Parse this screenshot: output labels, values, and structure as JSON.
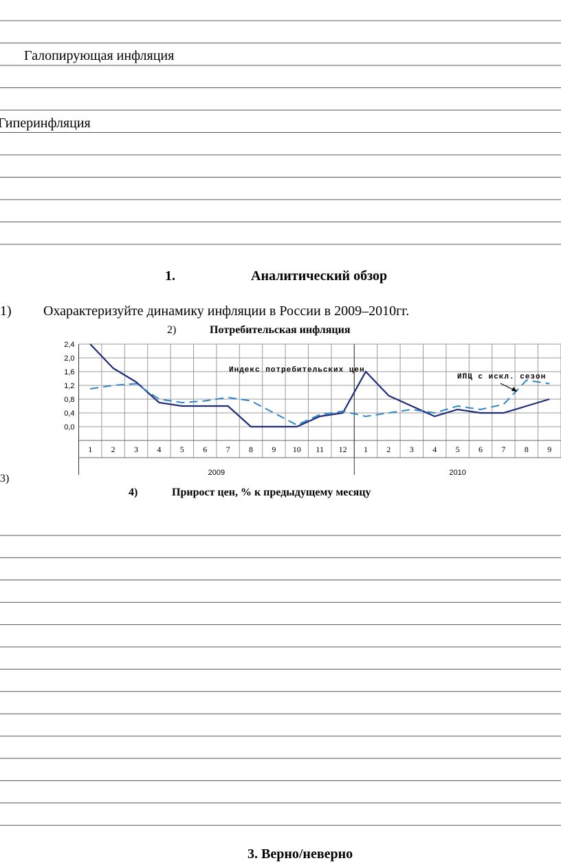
{
  "document": {
    "term_1": "Галопирующая инфляция",
    "term_2": "Гиперинфляция",
    "section_number": "1.",
    "section_title": "Аналитический обзор",
    "item_1_number": "1)",
    "item_1_text": "Охарактеризуйте  динамику инфляции в России в 2009–2010гг.",
    "item_2_number": "2)",
    "item_2_text": "Потребительская инфляция",
    "item_3_number": "3)",
    "item_4_number": "4)",
    "item_4_text": "Прирост цен,  % к предыдущему месяцу",
    "next_section": "3. Верно/неверно"
  },
  "chart_data": {
    "type": "line",
    "categories": [
      "1",
      "2",
      "3",
      "4",
      "5",
      "6",
      "7",
      "8",
      "9",
      "10",
      "11",
      "12",
      "1",
      "2",
      "3",
      "4",
      "5",
      "6",
      "7",
      "8",
      "9"
    ],
    "groups": [
      {
        "name": "2009",
        "count": 12
      },
      {
        "name": "2010",
        "count": 9
      }
    ],
    "series": [
      {
        "name": "Индекс потребительских цен",
        "color": "#1f2a7a",
        "dashed": false,
        "values": [
          2.4,
          1.7,
          1.3,
          0.7,
          0.6,
          0.6,
          0.6,
          0.0,
          0.0,
          0.0,
          0.3,
          0.4,
          1.6,
          0.9,
          0.6,
          0.3,
          0.5,
          0.4,
          0.4,
          0.6,
          0.8
        ]
      },
      {
        "name": "ИПЦ с искл. сезон",
        "color": "#2e86c8",
        "dashed": true,
        "values": [
          1.1,
          1.2,
          1.25,
          0.8,
          0.7,
          0.75,
          0.85,
          0.75,
          0.4,
          0.05,
          0.35,
          0.45,
          0.3,
          0.4,
          0.5,
          0.4,
          0.6,
          0.5,
          0.65,
          1.35,
          1.25
        ]
      }
    ],
    "ylim": [
      -0.4,
      2.4
    ],
    "yticks": [
      {
        "value": 0,
        "label": "0,0"
      },
      {
        "value": 0.4,
        "label": "0,4"
      },
      {
        "value": 0.8,
        "label": "0,8"
      },
      {
        "value": 1.2,
        "label": "1,2"
      },
      {
        "value": 1.6,
        "label": "1,6"
      },
      {
        "value": 2.0,
        "label": "2,0"
      },
      {
        "value": 2.4,
        "label": "2,4"
      }
    ],
    "grid": true
  }
}
